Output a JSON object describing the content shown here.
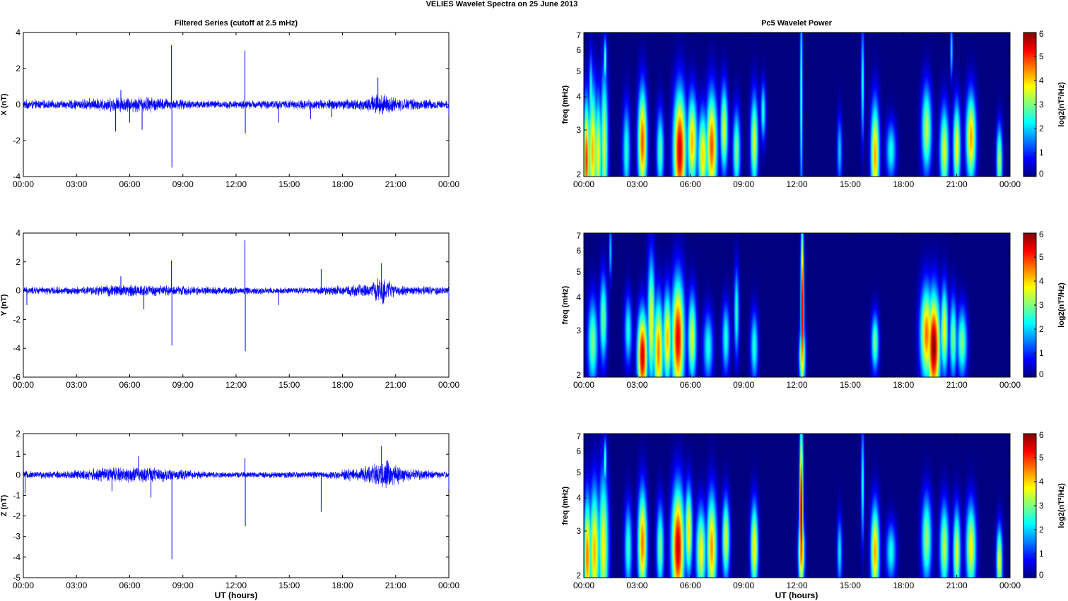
{
  "figure": {
    "title": "VELIES Wavelet Spectra on 25 June      2013",
    "left_column_title": "Filtered Series (cutoff at 2.5 mHz)",
    "right_column_title": "Pc5 Wavelet Power",
    "xlabel": "UT (hours)"
  },
  "chart_data": [
    {
      "type": "line",
      "component": "X",
      "ylabel": "X (nT)",
      "xlim": [
        0,
        24
      ],
      "ylim": [
        -4,
        4
      ],
      "yticks": [
        -4,
        -2,
        0,
        2,
        4
      ],
      "xticklabels": [
        "00:00",
        "03:00",
        "06:00",
        "09:00",
        "12:00",
        "15:00",
        "18:00",
        "21:00",
        "00:00"
      ],
      "series": [
        {
          "color": "#0000ff",
          "noise_amplitude": [
            [
              0,
              0.3
            ],
            [
              2,
              0.25
            ],
            [
              5,
              0.45
            ],
            [
              7,
              0.5
            ],
            [
              9,
              0.3
            ],
            [
              12,
              0.25
            ],
            [
              16,
              0.3
            ],
            [
              19,
              0.35
            ],
            [
              20,
              0.7
            ],
            [
              21,
              0.4
            ],
            [
              24,
              0.25
            ]
          ],
          "spikes": [
            [
              5.2,
              -1.5
            ],
            [
              5.5,
              0.8
            ],
            [
              6,
              -1.0
            ],
            [
              6.7,
              -1.4
            ],
            [
              8.35,
              3.3
            ],
            [
              8.38,
              -3.5
            ],
            [
              12.5,
              3.0
            ],
            [
              12.52,
              -1.6
            ],
            [
              14.4,
              -1.0
            ],
            [
              16.2,
              -0.8
            ],
            [
              17.4,
              -0.7
            ],
            [
              20,
              1.5
            ],
            [
              24,
              -0.6
            ]
          ]
        }
      ]
    },
    {
      "type": "line",
      "component": "Y",
      "ylabel": "Y (nT)",
      "xlim": [
        0,
        24
      ],
      "ylim": [
        -6,
        4
      ],
      "yticks": [
        -6,
        -4,
        -2,
        0,
        2,
        4
      ],
      "xticklabels": [
        "00:00",
        "03:00",
        "06:00",
        "09:00",
        "12:00",
        "15:00",
        "18:00",
        "21:00",
        "00:00"
      ],
      "series": [
        {
          "color": "#0000ff",
          "noise_amplitude": [
            [
              0,
              0.3
            ],
            [
              3,
              0.3
            ],
            [
              5.5,
              0.5
            ],
            [
              8,
              0.4
            ],
            [
              12,
              0.3
            ],
            [
              16,
              0.25
            ],
            [
              19.5,
              0.5
            ],
            [
              20.2,
              1.2
            ],
            [
              21,
              0.4
            ],
            [
              24,
              0.3
            ]
          ],
          "spikes": [
            [
              0.2,
              -1.0
            ],
            [
              5.5,
              1.0
            ],
            [
              6.8,
              -1.3
            ],
            [
              8.35,
              2.1
            ],
            [
              8.38,
              -3.8
            ],
            [
              12.5,
              3.5
            ],
            [
              12.52,
              -4.2
            ],
            [
              14.4,
              -1.0
            ],
            [
              16.8,
              1.5
            ],
            [
              20.2,
              1.9
            ],
            [
              24,
              -0.5
            ]
          ]
        }
      ]
    },
    {
      "type": "line",
      "component": "Z",
      "ylabel": "Z (nT)",
      "xlim": [
        0,
        24
      ],
      "ylim": [
        -5,
        2
      ],
      "yticks": [
        -5,
        -4,
        -3,
        -2,
        -1,
        0,
        1,
        2
      ],
      "xticklabels": [
        "00:00",
        "03:00",
        "06:00",
        "09:00",
        "12:00",
        "15:00",
        "18:00",
        "21:00",
        "00:00"
      ],
      "series": [
        {
          "color": "#0000ff",
          "noise_amplitude": [
            [
              0,
              0.2
            ],
            [
              2,
              0.2
            ],
            [
              5.5,
              0.45
            ],
            [
              7.5,
              0.4
            ],
            [
              10,
              0.2
            ],
            [
              12,
              0.15
            ],
            [
              17,
              0.2
            ],
            [
              19.5,
              0.45
            ],
            [
              20.5,
              0.8
            ],
            [
              21.5,
              0.35
            ],
            [
              24,
              0.15
            ]
          ],
          "spikes": [
            [
              0.1,
              -0.9
            ],
            [
              5,
              -0.8
            ],
            [
              6.5,
              0.9
            ],
            [
              7.2,
              -1.1
            ],
            [
              8.38,
              -4.1
            ],
            [
              12.5,
              0.8
            ],
            [
              12.52,
              -2.5
            ],
            [
              16.8,
              -1.8
            ],
            [
              20.2,
              1.4
            ],
            [
              24,
              -0.7
            ]
          ]
        }
      ]
    },
    {
      "type": "heatmap",
      "component": "X",
      "ylabel": "freq (mHz)",
      "y_scale": "log",
      "xlim": [
        0,
        24
      ],
      "ylim": [
        2,
        7
      ],
      "yticks": [
        2,
        3,
        4,
        5,
        6,
        7
      ],
      "xticklabels": [
        "00:00",
        "03:00",
        "06:00",
        "09:00",
        "12:00",
        "15:00",
        "18:00",
        "21:00",
        "00:00"
      ],
      "colorbar": {
        "label": "log2(nT²/Hz)",
        "ticks": [
          0,
          1,
          2,
          3,
          4,
          5,
          6
        ],
        "clim": [
          0,
          6
        ],
        "colormap": "jet"
      },
      "blobs": [
        [
          0.15,
          2.3,
          0.13,
          2.0,
          5.0
        ],
        [
          0.5,
          2.5,
          0.18,
          2.2,
          4.2
        ],
        [
          0.8,
          2.4,
          0.15,
          2.0,
          3.8
        ],
        [
          1.15,
          2.6,
          0.15,
          2.6,
          3.5
        ],
        [
          1.2,
          5.5,
          0.06,
          0.8,
          3.0
        ],
        [
          0.4,
          4.0,
          0.08,
          1.5,
          2.6
        ],
        [
          2.4,
          2.5,
          0.15,
          1.6,
          2.5
        ],
        [
          3.3,
          2.7,
          0.18,
          1.8,
          4.8
        ],
        [
          4.3,
          2.5,
          0.15,
          1.4,
          2.8
        ],
        [
          5.4,
          2.5,
          0.25,
          2.0,
          5.6
        ],
        [
          6.1,
          2.7,
          0.2,
          1.6,
          4.2
        ],
        [
          6.7,
          2.4,
          0.2,
          1.5,
          4.0
        ],
        [
          7.2,
          2.6,
          0.22,
          1.8,
          4.8
        ],
        [
          7.9,
          3.0,
          0.15,
          1.5,
          3.6
        ],
        [
          8.6,
          2.5,
          0.15,
          1.4,
          3.0
        ],
        [
          9.6,
          2.7,
          0.15,
          1.6,
          3.6
        ],
        [
          10.1,
          3.5,
          0.1,
          1.0,
          2.5
        ],
        [
          12.25,
          4.0,
          0.05,
          3.5,
          3.0
        ],
        [
          14.4,
          2.5,
          0.1,
          1.2,
          2.0
        ],
        [
          15.7,
          4.5,
          0.06,
          2.0,
          2.6
        ],
        [
          16.4,
          2.4,
          0.17,
          1.8,
          4.3
        ],
        [
          17.3,
          2.5,
          0.2,
          1.0,
          2.4
        ],
        [
          19.3,
          3.0,
          0.2,
          1.5,
          3.4
        ],
        [
          20.3,
          2.5,
          0.18,
          1.5,
          3.6
        ],
        [
          21.0,
          2.6,
          0.15,
          1.5,
          3.8
        ],
        [
          21.8,
          2.8,
          0.2,
          1.5,
          4.3
        ],
        [
          23.4,
          2.3,
          0.12,
          1.2,
          3.4
        ],
        [
          20.7,
          6.0,
          0.05,
          1.0,
          2.4
        ]
      ]
    },
    {
      "type": "heatmap",
      "component": "Y",
      "ylabel": "freq (mHz)",
      "y_scale": "log",
      "xlim": [
        0,
        24
      ],
      "ylim": [
        2,
        7
      ],
      "yticks": [
        2,
        3,
        4,
        5,
        6,
        7
      ],
      "xticklabels": [
        "00:00",
        "03:00",
        "06:00",
        "09:00",
        "12:00",
        "15:00",
        "18:00",
        "21:00",
        "00:00"
      ],
      "colorbar": {
        "label": "log2(nT²/Hz)",
        "ticks": [
          0,
          1,
          2,
          3,
          4,
          5,
          6
        ],
        "clim": [
          0,
          6
        ],
        "colormap": "jet"
      },
      "blobs": [
        [
          0.5,
          2.7,
          0.2,
          1.5,
          3.0
        ],
        [
          1.1,
          3.3,
          0.15,
          1.5,
          3.0
        ],
        [
          2.5,
          3.0,
          0.15,
          1.2,
          2.4
        ],
        [
          3.3,
          2.4,
          0.2,
          1.5,
          5.6
        ],
        [
          3.8,
          3.2,
          0.15,
          2.2,
          3.8
        ],
        [
          4.2,
          2.5,
          0.2,
          1.8,
          4.5
        ],
        [
          4.7,
          2.8,
          0.17,
          1.6,
          4.2
        ],
        [
          5.3,
          2.8,
          0.25,
          2.0,
          5.4
        ],
        [
          6.1,
          2.8,
          0.17,
          1.5,
          3.6
        ],
        [
          7.0,
          2.6,
          0.2,
          1.2,
          2.4
        ],
        [
          8.0,
          2.8,
          0.15,
          1.2,
          2.5
        ],
        [
          8.6,
          3.5,
          0.1,
          1.5,
          2.6
        ],
        [
          9.6,
          2.6,
          0.15,
          1.2,
          2.5
        ],
        [
          12.3,
          3.5,
          0.06,
          3.0,
          6.0
        ],
        [
          12.3,
          2.4,
          0.12,
          1.0,
          4.2
        ],
        [
          16.4,
          2.7,
          0.15,
          1.0,
          3.0
        ],
        [
          19.3,
          2.9,
          0.25,
          1.6,
          4.6
        ],
        [
          19.7,
          2.6,
          0.25,
          1.8,
          6.0
        ],
        [
          20.3,
          3.0,
          0.15,
          1.5,
          3.8
        ],
        [
          20.8,
          2.8,
          0.15,
          1.4,
          3.0
        ],
        [
          21.3,
          2.7,
          0.2,
          1.2,
          3.0
        ],
        [
          1.5,
          6.0,
          0.05,
          1.0,
          2.2
        ]
      ]
    },
    {
      "type": "heatmap",
      "component": "Z",
      "ylabel": "freq (mHz)",
      "y_scale": "log",
      "xlim": [
        0,
        24
      ],
      "ylim": [
        2,
        7
      ],
      "yticks": [
        2,
        3,
        4,
        5,
        6,
        7
      ],
      "xticklabels": [
        "00:00",
        "03:00",
        "06:00",
        "09:00",
        "12:00",
        "15:00",
        "18:00",
        "21:00",
        "00:00"
      ],
      "colorbar": {
        "label": "log2(nT²/Hz)",
        "ticks": [
          0,
          1,
          2,
          3,
          4,
          5,
          6
        ],
        "clim": [
          0,
          6
        ],
        "colormap": "jet"
      },
      "blobs": [
        [
          0.2,
          2.4,
          0.15,
          2.0,
          4.6
        ],
        [
          0.6,
          2.5,
          0.2,
          2.2,
          4.2
        ],
        [
          1.1,
          2.6,
          0.2,
          2.5,
          3.8
        ],
        [
          1.2,
          5.5,
          0.06,
          0.8,
          3.0
        ],
        [
          2.5,
          2.6,
          0.15,
          1.5,
          2.6
        ],
        [
          3.3,
          2.7,
          0.18,
          1.8,
          4.6
        ],
        [
          4.3,
          2.6,
          0.15,
          1.5,
          3.0
        ],
        [
          5.3,
          2.6,
          0.25,
          2.0,
          5.6
        ],
        [
          5.9,
          3.0,
          0.15,
          1.5,
          4.0
        ],
        [
          6.6,
          2.5,
          0.2,
          1.5,
          3.8
        ],
        [
          7.2,
          2.6,
          0.2,
          1.8,
          4.4
        ],
        [
          8.0,
          2.8,
          0.15,
          1.4,
          3.6
        ],
        [
          9.6,
          2.6,
          0.15,
          1.5,
          4.0
        ],
        [
          12.25,
          3.5,
          0.07,
          3.0,
          6.0
        ],
        [
          12.25,
          2.5,
          0.12,
          1.2,
          4.8
        ],
        [
          14.4,
          2.5,
          0.1,
          1.2,
          2.2
        ],
        [
          15.7,
          4.5,
          0.06,
          2.0,
          2.6
        ],
        [
          16.4,
          2.5,
          0.17,
          1.6,
          4.3
        ],
        [
          17.3,
          2.5,
          0.2,
          1.0,
          2.4
        ],
        [
          19.3,
          2.8,
          0.2,
          1.5,
          3.2
        ],
        [
          20.3,
          2.6,
          0.18,
          1.5,
          3.4
        ],
        [
          21.0,
          2.5,
          0.15,
          1.5,
          3.6
        ],
        [
          21.8,
          2.6,
          0.2,
          1.5,
          3.8
        ],
        [
          23.4,
          2.3,
          0.12,
          1.2,
          3.8
        ]
      ]
    }
  ]
}
